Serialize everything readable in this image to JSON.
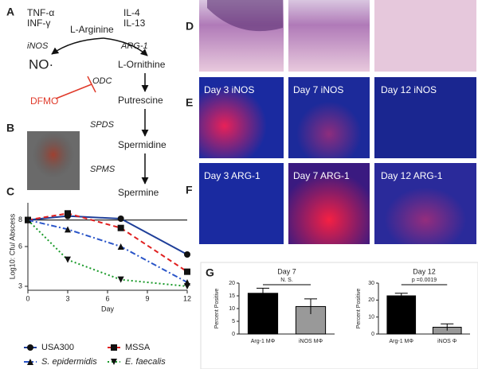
{
  "panel_labels": [
    "A",
    "B",
    "C",
    "D",
    "E",
    "F",
    "G"
  ],
  "pathway": {
    "nodes": [
      "TNF-α",
      "INF-γ",
      "IL-4",
      "IL-13",
      "L-Arginine",
      "NO·",
      "L-Ornithine",
      "Putrescine",
      "Spermidine",
      "Spermine"
    ],
    "enzymes": [
      "iNOS",
      "ARG-1",
      "ODC",
      "SPDS",
      "SPMS"
    ],
    "inhibitor": "DFMO"
  },
  "micrographs": {
    "labels": [
      "Day 3 iNOS",
      "Day 7 iNOS",
      "Day 12 iNOS",
      "Day 3 ARG-1",
      "Day 7 ARG-1",
      "Day 12 ARG-1"
    ]
  },
  "chart_data": [
    {
      "type": "line",
      "x_label": "Day",
      "y_label": "Log10: Cfu/ Abscess",
      "x": [
        0,
        3,
        7,
        12
      ],
      "xlim": [
        0,
        12
      ],
      "xticks": [
        0,
        3,
        6,
        9,
        12
      ],
      "ylim": [
        2.7,
        9.3
      ],
      "yticks": [
        3,
        6,
        8
      ],
      "hline": 8,
      "series": [
        {
          "name": "USA300",
          "color": "#1f3f99",
          "dash": "solid",
          "marker": "circle",
          "values": [
            8,
            8.3,
            8.1,
            5.4
          ]
        },
        {
          "name": "MSSA",
          "color": "#e02020",
          "dash": "dashed",
          "marker": "square",
          "values": [
            8,
            8.5,
            7.4,
            4.1
          ]
        },
        {
          "name": "S. epidermidis",
          "color": "#2a55c8",
          "dash": "dashdot",
          "marker": "triangle",
          "values": [
            8,
            7.3,
            6.0,
            3.3
          ]
        },
        {
          "name": "E. faecalis",
          "color": "#1a9a2a",
          "dash": "dotted",
          "marker": "triangle-down",
          "values": [
            8,
            5.0,
            3.5,
            3.0
          ]
        }
      ]
    },
    {
      "type": "bar",
      "title": "Day 7",
      "y_label": "Percent Positive",
      "categories": [
        "Arg-1 MΦ",
        "iNOS MΦ"
      ],
      "values": [
        16,
        10.8
      ],
      "errors": [
        2,
        3
      ],
      "colors": [
        "#000000",
        "#999999"
      ],
      "ylim": [
        0,
        20
      ],
      "yticks": [
        0,
        5,
        10,
        15,
        20
      ],
      "annotation": "N. S."
    },
    {
      "type": "bar",
      "title": "Day 12",
      "y_label": "Percent Positive",
      "categories": [
        "Arg-1 MΦ",
        "iNOS Φ"
      ],
      "values": [
        22.5,
        4
      ],
      "errors": [
        1.5,
        2
      ],
      "colors": [
        "#000000",
        "#999999"
      ],
      "ylim": [
        0,
        30
      ],
      "yticks": [
        0,
        10,
        20,
        30
      ],
      "annotation": "p =0.0019"
    }
  ]
}
